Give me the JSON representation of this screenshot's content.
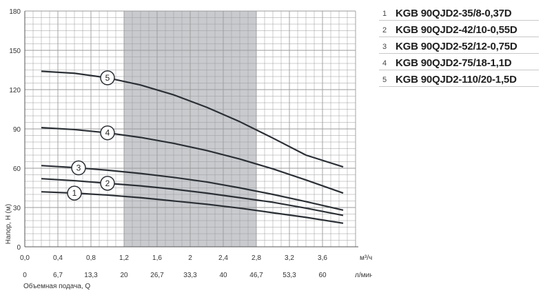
{
  "chart_data": {
    "type": "line",
    "ylabel": "Напор, H (м)",
    "x_unit": "м³/ч",
    "x2_unit": "л/мин",
    "x2_label": "Объемная подача, Q",
    "xlim": [
      0,
      4.0
    ],
    "ylim": [
      0,
      180
    ],
    "x_ticks": [
      "0,0",
      "0,4",
      "0,8",
      "1,2",
      "1,6",
      "2",
      "2,4",
      "2,8",
      "3,2",
      "3,6"
    ],
    "x_tick_values": [
      0,
      0.4,
      0.8,
      1.2,
      1.6,
      2.0,
      2.4,
      2.8,
      3.2,
      3.6
    ],
    "x2_ticks": [
      "0",
      "6,7",
      "13,3",
      "20",
      "26,7",
      "33,3",
      "40",
      "46,7",
      "53,3",
      "60"
    ],
    "y_ticks": [
      "0",
      "30",
      "60",
      "90",
      "120",
      "150",
      "180"
    ],
    "y_tick_values": [
      0,
      30,
      60,
      90,
      120,
      150,
      180
    ],
    "grid": true,
    "shaded_range": [
      1.2,
      2.8
    ],
    "series": [
      {
        "name": "KGB 90QJD2-35/8-0,37D",
        "marker": "1",
        "marker_x": 0.6,
        "x": [
          0.2,
          0.6,
          1.0,
          1.4,
          1.8,
          2.2,
          2.6,
          3.0,
          3.4,
          3.85
        ],
        "y": [
          42,
          41,
          39.5,
          37.5,
          35,
          32.5,
          29.5,
          26,
          22.5,
          18
        ]
      },
      {
        "name": "KGB 90QJD2-42/10-0,55D",
        "marker": "2",
        "marker_x": 1.0,
        "x": [
          0.2,
          0.6,
          1.0,
          1.4,
          1.8,
          2.2,
          2.6,
          3.0,
          3.4,
          3.85
        ],
        "y": [
          52,
          50.5,
          48.5,
          46.5,
          44,
          41,
          37.5,
          34,
          29.5,
          24
        ]
      },
      {
        "name": "KGB 90QJD2-52/12-0,75D",
        "marker": "3",
        "marker_x": 0.65,
        "x": [
          0.2,
          0.6,
          1.0,
          1.4,
          1.8,
          2.2,
          2.6,
          3.0,
          3.4,
          3.85
        ],
        "y": [
          62,
          60.5,
          58.5,
          56,
          53,
          49.5,
          45,
          40,
          34.5,
          28
        ]
      },
      {
        "name": "KGB 90QJD2-75/18-1,1D",
        "marker": "4",
        "marker_x": 1.0,
        "x": [
          0.2,
          0.6,
          1.0,
          1.4,
          1.8,
          2.2,
          2.6,
          3.0,
          3.4,
          3.85
        ],
        "y": [
          91,
          89.5,
          87,
          83.5,
          79,
          73.5,
          67,
          59.5,
          51,
          41
        ]
      },
      {
        "name": "KGB 90QJD2-110/20-1,5D",
        "marker": "5",
        "marker_x": 1.0,
        "x": [
          0.2,
          0.6,
          1.0,
          1.4,
          1.8,
          2.2,
          2.6,
          3.0,
          3.4,
          3.85
        ],
        "y": [
          134,
          132.5,
          129,
          123.5,
          116,
          106.5,
          95.5,
          83,
          70,
          61
        ]
      }
    ]
  },
  "colors": {
    "grid": "#9a9a9a",
    "curve": "#2a2f35",
    "shade": "#b6b8bd",
    "axis": "#555555"
  }
}
